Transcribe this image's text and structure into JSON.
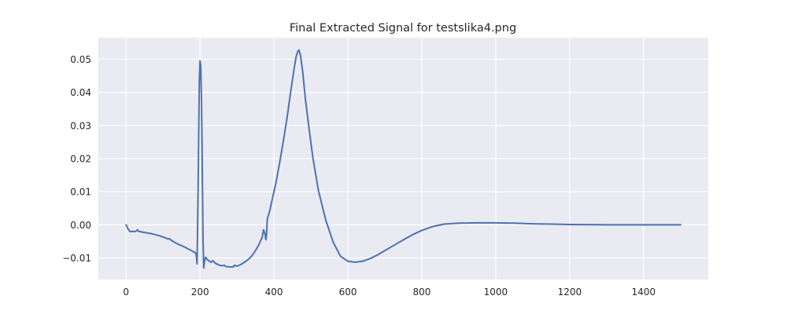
{
  "chart_data": {
    "type": "line",
    "title": "Final Extracted Signal for testslika4.png",
    "xlabel": "",
    "ylabel": "",
    "xlim": [
      -75,
      1575
    ],
    "ylim": [
      -0.0165,
      0.0565
    ],
    "xticks": [
      0,
      200,
      400,
      600,
      800,
      1000,
      1200,
      1400
    ],
    "yticks": [
      -0.01,
      0.0,
      0.01,
      0.02,
      0.03,
      0.04,
      0.05
    ],
    "xtick_labels": [
      "0",
      "200",
      "400",
      "600",
      "800",
      "1000",
      "1200",
      "1400"
    ],
    "ytick_labels": [
      "−0.01",
      "0.00",
      "0.01",
      "0.02",
      "0.03",
      "0.04",
      "0.05"
    ],
    "grid": true,
    "colors": {
      "background": "#eaeaf2",
      "grid": "#ffffff",
      "series": "#4c72b0"
    },
    "series": [
      {
        "x": [
          0,
          5,
          10,
          15,
          20,
          25,
          28,
          31,
          34,
          40,
          50,
          60,
          70,
          80,
          90,
          100,
          110,
          115,
          118,
          121,
          130,
          140,
          150,
          160,
          170,
          180,
          188,
          190,
          192,
          195,
          198,
          200,
          202,
          204,
          206,
          208,
          210,
          212,
          215,
          220,
          225,
          230,
          235,
          240,
          250,
          260,
          265,
          270,
          280,
          285,
          290,
          293,
          300,
          310,
          320,
          330,
          340,
          350,
          360,
          368,
          372,
          376,
          378,
          380,
          382,
          384,
          388,
          395,
          405,
          415,
          425,
          435,
          445,
          455,
          460,
          465,
          468,
          472,
          478,
          485,
          495,
          505,
          520,
          540,
          560,
          580,
          600,
          620,
          640,
          660,
          680,
          700,
          720,
          740,
          760,
          780,
          800,
          830,
          860,
          900,
          950,
          1000,
          1050,
          1100,
          1150,
          1200,
          1300,
          1400,
          1500
        ],
        "y": [
          0.0,
          -0.0012,
          -0.002,
          -0.002,
          -0.002,
          -0.002,
          -0.0018,
          -0.0015,
          -0.002,
          -0.0021,
          -0.0023,
          -0.0025,
          -0.0027,
          -0.003,
          -0.0033,
          -0.0037,
          -0.0041,
          -0.0043,
          -0.0042,
          -0.0046,
          -0.0052,
          -0.0058,
          -0.0063,
          -0.0068,
          -0.0074,
          -0.008,
          -0.0085,
          -0.0093,
          -0.0118,
          0.012,
          0.043,
          0.0495,
          0.048,
          0.037,
          0.018,
          -0.004,
          -0.013,
          -0.0112,
          -0.0098,
          -0.0105,
          -0.011,
          -0.0113,
          -0.0108,
          -0.0115,
          -0.0121,
          -0.0124,
          -0.0122,
          -0.0126,
          -0.0127,
          -0.0127,
          -0.0127,
          -0.0122,
          -0.0125,
          -0.012,
          -0.0113,
          -0.0105,
          -0.0094,
          -0.0078,
          -0.0058,
          -0.0038,
          -0.0015,
          -0.0028,
          -0.0045,
          -0.003,
          0.0018,
          0.0025,
          0.004,
          0.0075,
          0.0125,
          0.0185,
          0.025,
          0.032,
          0.04,
          0.0475,
          0.0508,
          0.0525,
          0.0527,
          0.051,
          0.046,
          0.038,
          0.029,
          0.0205,
          0.0105,
          0.0015,
          -0.0052,
          -0.0095,
          -0.011,
          -0.0113,
          -0.011,
          -0.0102,
          -0.0091,
          -0.0078,
          -0.0065,
          -0.0052,
          -0.0039,
          -0.0027,
          -0.0017,
          -0.0005,
          0.0002,
          0.0005,
          0.0006,
          0.0006,
          0.0005,
          0.0003,
          0.0002,
          0.0001,
          0.0,
          0.0,
          0.0
        ]
      }
    ]
  }
}
